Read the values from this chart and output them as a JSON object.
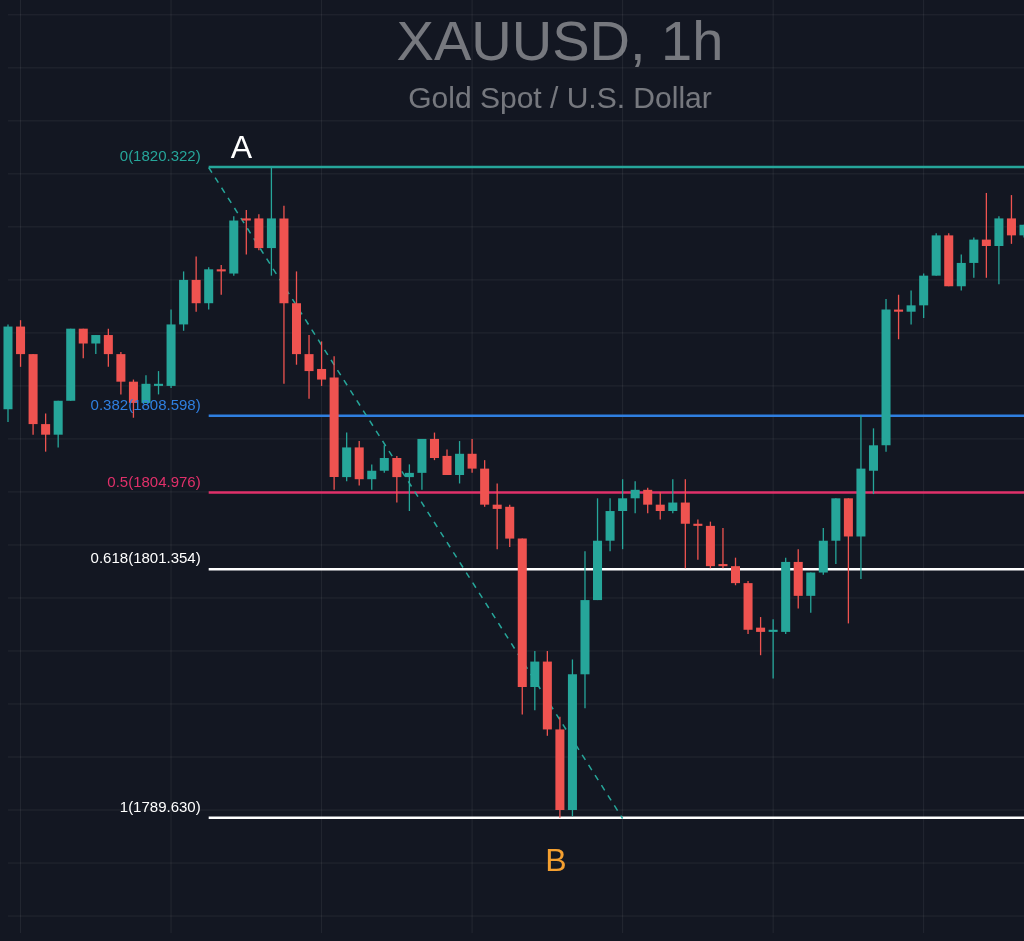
{
  "chart_data": {
    "type": "candlestick",
    "title": "XAUUSD, 1h",
    "subtitle": "Gold Spot / U.S. Dollar",
    "categories": [
      null,
      null,
      null,
      null,
      null,
      null,
      null,
      null,
      null,
      null,
      null,
      null,
      null,
      null,
      null,
      null,
      null,
      null,
      null,
      null,
      null,
      null,
      null,
      null,
      null,
      null,
      null,
      null,
      null,
      null,
      null,
      null,
      null,
      null,
      null,
      null,
      null,
      null,
      null,
      null,
      null,
      null,
      null,
      null,
      null,
      null,
      null,
      null,
      null,
      null,
      null,
      null,
      null,
      null,
      null,
      null,
      null,
      null,
      null,
      null,
      null,
      null,
      null,
      null,
      null,
      null,
      null,
      null,
      null,
      null,
      null,
      null,
      null,
      null,
      null,
      null,
      null,
      null,
      null,
      null,
      null,
      null
    ],
    "ohlc": [
      [
        1808.9,
        1812.9,
        1808.3,
        1812.8
      ],
      [
        1812.8,
        1813.1,
        1810.9,
        1811.5
      ],
      [
        1811.5,
        1811.5,
        1807.7,
        1808.2
      ],
      [
        1808.2,
        1808.7,
        1806.9,
        1807.7
      ],
      [
        1807.7,
        1809.3,
        1807.1,
        1809.3
      ],
      [
        1809.3,
        1812.7,
        1809.3,
        1812.7
      ],
      [
        1812.7,
        1812.7,
        1811.3,
        1812.0
      ],
      [
        1812.0,
        1812.4,
        1811.5,
        1812.4
      ],
      [
        1812.4,
        1812.7,
        1810.9,
        1811.5
      ],
      [
        1811.5,
        1811.6,
        1809.6,
        1810.2
      ],
      [
        1810.2,
        1810.3,
        1808.5,
        1809.2
      ],
      [
        1809.2,
        1810.5,
        1809.2,
        1810.1
      ],
      [
        1810.0,
        1810.7,
        1809.6,
        1810.1
      ],
      [
        1810.0,
        1813.6,
        1809.9,
        1812.9
      ],
      [
        1812.9,
        1815.4,
        1812.6,
        1815.0
      ],
      [
        1815.0,
        1816.1,
        1813.5,
        1813.9
      ],
      [
        1813.9,
        1815.6,
        1813.6,
        1815.5
      ],
      [
        1815.5,
        1815.7,
        1814.3,
        1815.4
      ],
      [
        1815.3,
        1818.0,
        1815.2,
        1817.8
      ],
      [
        1817.9,
        1818.3,
        1816.2,
        1817.8
      ],
      [
        1817.9,
        1818.1,
        1816.4,
        1816.5
      ],
      [
        1816.5,
        1820.322,
        1815.2,
        1817.9
      ],
      [
        1817.9,
        1818.5,
        1810.1,
        1813.9
      ],
      [
        1813.9,
        1815.4,
        1811.0,
        1811.5
      ],
      [
        1811.5,
        1812.4,
        1809.4,
        1810.7
      ],
      [
        1810.8,
        1812.1,
        1810.0,
        1810.3
      ],
      [
        1810.4,
        1811.4,
        1805.1,
        1805.7
      ],
      [
        1805.7,
        1807.8,
        1805.5,
        1807.1
      ],
      [
        1807.1,
        1807.4,
        1805.3,
        1805.6
      ],
      [
        1805.6,
        1806.3,
        1805.1,
        1806.0
      ],
      [
        1806.0,
        1807.2,
        1805.9,
        1806.6
      ],
      [
        1806.6,
        1806.7,
        1804.5,
        1805.7
      ],
      [
        1805.7,
        1806.3,
        1804.1,
        1805.9
      ],
      [
        1805.9,
        1807.5,
        1805.1,
        1807.5
      ],
      [
        1807.5,
        1807.8,
        1806.5,
        1806.6
      ],
      [
        1806.7,
        1807.0,
        1805.8,
        1805.8
      ],
      [
        1805.8,
        1807.4,
        1805.4,
        1806.8
      ],
      [
        1806.8,
        1807.5,
        1805.9,
        1806.1
      ],
      [
        1806.1,
        1806.5,
        1804.3,
        1804.4
      ],
      [
        1804.4,
        1805.4,
        1802.3,
        1804.2
      ],
      [
        1804.3,
        1804.4,
        1802.4,
        1802.8
      ],
      [
        1802.8,
        1802.8,
        1794.5,
        1795.8
      ],
      [
        1795.8,
        1797.5,
        1794.7,
        1797.0
      ],
      [
        1797.0,
        1797.5,
        1793.5,
        1793.8
      ],
      [
        1793.8,
        1794.4,
        1789.63,
        1790.0
      ],
      [
        1790.0,
        1797.1,
        1789.7,
        1796.4
      ],
      [
        1796.4,
        1802.2,
        1794.8,
        1799.9
      ],
      [
        1799.9,
        1804.7,
        1799.9,
        1802.7
      ],
      [
        1802.7,
        1804.7,
        1802.2,
        1804.1
      ],
      [
        1804.1,
        1805.6,
        1802.3,
        1804.7
      ],
      [
        1804.7,
        1805.5,
        1804.0,
        1805.1
      ],
      [
        1805.1,
        1805.2,
        1804.0,
        1804.4
      ],
      [
        1804.4,
        1805.0,
        1803.7,
        1804.1
      ],
      [
        1804.1,
        1805.6,
        1804.0,
        1804.5
      ],
      [
        1804.5,
        1805.6,
        1801.4,
        1803.5
      ],
      [
        1803.5,
        1803.7,
        1801.8,
        1803.4
      ],
      [
        1803.4,
        1803.6,
        1801.4,
        1801.5
      ],
      [
        1801.6,
        1803.3,
        1801.4,
        1801.5
      ],
      [
        1801.5,
        1801.9,
        1800.6,
        1800.7
      ],
      [
        1800.7,
        1800.8,
        1798.3,
        1798.5
      ],
      [
        1798.6,
        1799.1,
        1797.3,
        1798.4
      ],
      [
        1798.4,
        1799.0,
        1796.2,
        1798.5
      ],
      [
        1798.4,
        1801.9,
        1798.3,
        1801.7
      ],
      [
        1801.7,
        1802.3,
        1799.5,
        1800.1
      ],
      [
        1800.1,
        1801.2,
        1799.3,
        1801.2
      ],
      [
        1801.2,
        1803.3,
        1801.1,
        1802.7
      ],
      [
        1802.7,
        1804.7,
        1801.6,
        1804.7
      ],
      [
        1804.7,
        1804.7,
        1798.8,
        1802.9
      ],
      [
        1802.9,
        1808.6,
        1800.9,
        1806.1
      ],
      [
        1806.0,
        1808.0,
        1804.9,
        1807.2
      ],
      [
        1807.2,
        1814.1,
        1806.9,
        1813.6
      ],
      [
        1813.6,
        1814.3,
        1812.2,
        1813.5
      ],
      [
        1813.5,
        1814.5,
        1812.9,
        1813.8
      ],
      [
        1813.8,
        1815.3,
        1813.2,
        1815.2
      ],
      [
        1815.2,
        1817.2,
        1815.2,
        1817.1
      ],
      [
        1817.1,
        1817.2,
        1814.7,
        1814.7
      ],
      [
        1814.7,
        1816.2,
        1814.5,
        1815.8
      ],
      [
        1815.8,
        1817.0,
        1815.1,
        1816.9
      ],
      [
        1816.9,
        1819.1,
        1815.1,
        1816.6
      ],
      [
        1816.6,
        1818.0,
        1814.8,
        1817.9
      ],
      [
        1817.9,
        1819.0,
        1816.7,
        1817.1
      ],
      [
        1817.1,
        1817.6,
        1817.0,
        1817.6
      ]
    ],
    "series": [
      {
        "type": "line",
        "color": "#26a69a",
        "line_style": "dashed",
        "values": [
          null,
          null,
          null,
          null,
          null,
          null,
          null,
          null,
          null,
          null,
          null,
          null,
          null,
          null,
          null,
          null,
          1820.3,
          null,
          null,
          null,
          null,
          null,
          null,
          null,
          null,
          null,
          null,
          null,
          null,
          null,
          null,
          null,
          null,
          null,
          null,
          null,
          null,
          null,
          null,
          null,
          null,
          null,
          null,
          null,
          null,
          null,
          null,
          null,
          null,
          1789.6,
          null,
          null,
          null,
          null,
          null,
          null,
          null,
          null,
          null,
          null,
          null,
          null,
          null,
          null,
          null,
          null,
          null,
          null,
          null,
          null,
          null,
          null,
          null,
          null,
          null,
          null,
          null,
          null,
          null,
          null,
          null,
          null
        ]
      }
    ],
    "ylim": [
      1784.2,
      1828.2
    ],
    "yticks": [
      {
        "value": 1785,
        "label": null
      },
      {
        "value": 1787.5,
        "label": null
      },
      {
        "value": 1790,
        "label": null
      },
      {
        "value": 1792.5,
        "label": null
      },
      {
        "value": 1795,
        "label": null
      },
      {
        "value": 1797.5,
        "label": null
      },
      {
        "value": 1800,
        "label": null
      },
      {
        "value": 1802.5,
        "label": null
      },
      {
        "value": 1805,
        "label": null
      },
      {
        "value": 1807.5,
        "label": null
      },
      {
        "value": 1810,
        "label": null
      },
      {
        "value": 1812.5,
        "label": null
      },
      {
        "value": 1815,
        "label": null
      },
      {
        "value": 1817.5,
        "label": null
      },
      {
        "value": 1820,
        "label": null
      },
      {
        "value": 1822.5,
        "label": null
      },
      {
        "value": 1825,
        "label": null
      },
      {
        "value": 1827.5,
        "label": null
      }
    ],
    "grid": true,
    "tick_labels": false,
    "ref_lines": [
      {
        "axis": "y",
        "value": 1820.322,
        "label": "0(1820.322)",
        "color": "#26a69a"
      },
      {
        "axis": "y",
        "value": 1808.598,
        "label": "0.382(1808.598)",
        "color": "#2f7fe0"
      },
      {
        "axis": "y",
        "value": 1804.976,
        "label": "0.5(1804.976)",
        "color": "#e0306a"
      },
      {
        "axis": "y",
        "value": 1801.354,
        "label": "0.618(1801.354)",
        "color": "#ffffff"
      },
      {
        "axis": "y",
        "value": 1789.63,
        "label": "1(1789.630)",
        "color": "#ffffff"
      }
    ],
    "annotations": [
      {
        "text": "A",
        "y": 1820.322
      },
      {
        "text": "B",
        "y": 1789.63
      }
    ]
  }
}
